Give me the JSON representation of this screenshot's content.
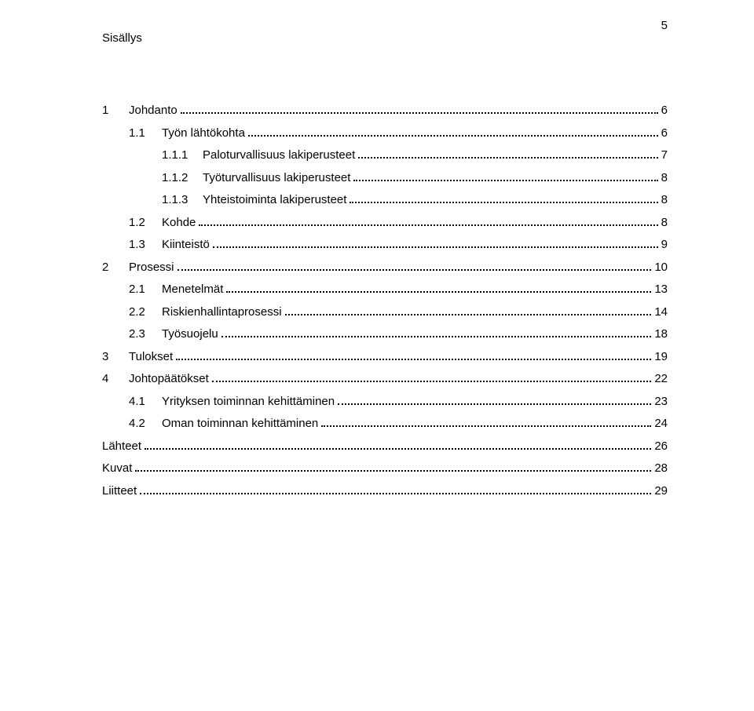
{
  "page_number": "5",
  "title": "Sisällys",
  "entries": [
    {
      "level": 1,
      "num": "1",
      "label": "Johdanto",
      "page": "6"
    },
    {
      "level": 2,
      "num": "1.1",
      "label": "Työn lähtökohta",
      "page": "6"
    },
    {
      "level": 3,
      "num": "1.1.1",
      "label": "Paloturvallisuus lakiperusteet",
      "page": "7"
    },
    {
      "level": 3,
      "num": "1.1.2",
      "label": "Työturvallisuus lakiperusteet",
      "page": "8"
    },
    {
      "level": 3,
      "num": "1.1.3",
      "label": "Yhteistoiminta lakiperusteet",
      "page": "8"
    },
    {
      "level": 2,
      "num": "1.2",
      "label": "Kohde",
      "page": "8"
    },
    {
      "level": 2,
      "num": "1.3",
      "label": "Kiinteistö",
      "page": "9"
    },
    {
      "level": 1,
      "num": "2",
      "label": "Prosessi",
      "page": "10"
    },
    {
      "level": 2,
      "num": "2.1",
      "label": "Menetelmät",
      "page": "13"
    },
    {
      "level": 2,
      "num": "2.2",
      "label": "Riskienhallintaprosessi",
      "page": "14"
    },
    {
      "level": 2,
      "num": "2.3",
      "label": "Työsuojelu",
      "page": "18"
    },
    {
      "level": 1,
      "num": "3",
      "label": "Tulokset",
      "page": "19"
    },
    {
      "level": 1,
      "num": "4",
      "label": "Johtopäätökset",
      "page": "22"
    },
    {
      "level": 2,
      "num": "4.1",
      "label": "Yrityksen toiminnan kehittäminen",
      "page": "23"
    },
    {
      "level": 2,
      "num": "4.2",
      "label": "Oman toiminnan kehittäminen",
      "page": "24"
    },
    {
      "level": 1,
      "num": "",
      "label": "Lähteet",
      "page": "26"
    },
    {
      "level": 1,
      "num": "",
      "label": "Kuvat",
      "page": "28"
    },
    {
      "level": 1,
      "num": "",
      "label": "Liitteet",
      "page": "29"
    }
  ],
  "colors": {
    "background": "#ffffff",
    "text": "#000000",
    "leader": "#000000"
  },
  "typography": {
    "body_fontsize_pt": 11,
    "line_height": 1.9
  }
}
